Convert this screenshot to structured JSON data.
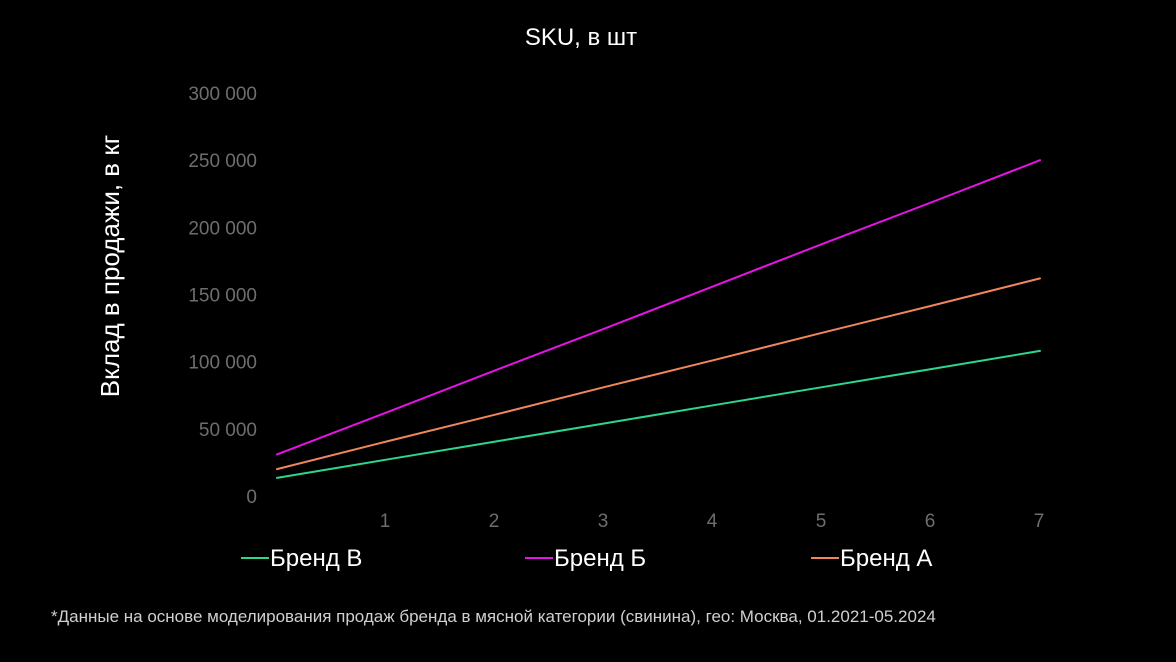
{
  "chart_data": {
    "type": "line",
    "title": "SKU, в шт",
    "xlabel": "",
    "ylabel": "Вклад в продажи, в кг",
    "x": [
      0,
      1,
      2,
      3,
      4,
      5,
      6,
      7
    ],
    "xticks": [
      1,
      2,
      3,
      4,
      5,
      6,
      7
    ],
    "xlim": [
      0,
      7
    ],
    "yticks": [
      0,
      50000,
      100000,
      150000,
      200000,
      250000,
      300000
    ],
    "ytick_labels": [
      "0",
      "50 000",
      "100 000",
      "150 000",
      "200 000",
      "250 000",
      "300 000"
    ],
    "ylim": [
      0,
      300000
    ],
    "grid": false,
    "legend": "bottom",
    "series": [
      {
        "name": "Бренд В",
        "color": "#2ed58f",
        "values": [
          13500,
          27000,
          40500,
          54000,
          67500,
          81000,
          94500,
          108000
        ]
      },
      {
        "name": "Бренд Б",
        "color": "#e414e6",
        "values": [
          31000,
          62000,
          93500,
          124500,
          156000,
          187500,
          218500,
          250000
        ]
      },
      {
        "name": "Бренд А",
        "color": "#f0875a",
        "values": [
          20000,
          40500,
          60500,
          81000,
          101000,
          121500,
          141500,
          162000
        ]
      }
    ]
  },
  "footnote": "*Данные на основе моделирования продаж бренда в мясной категории (свинина), гео: Москва, 01.2021-05.2024"
}
